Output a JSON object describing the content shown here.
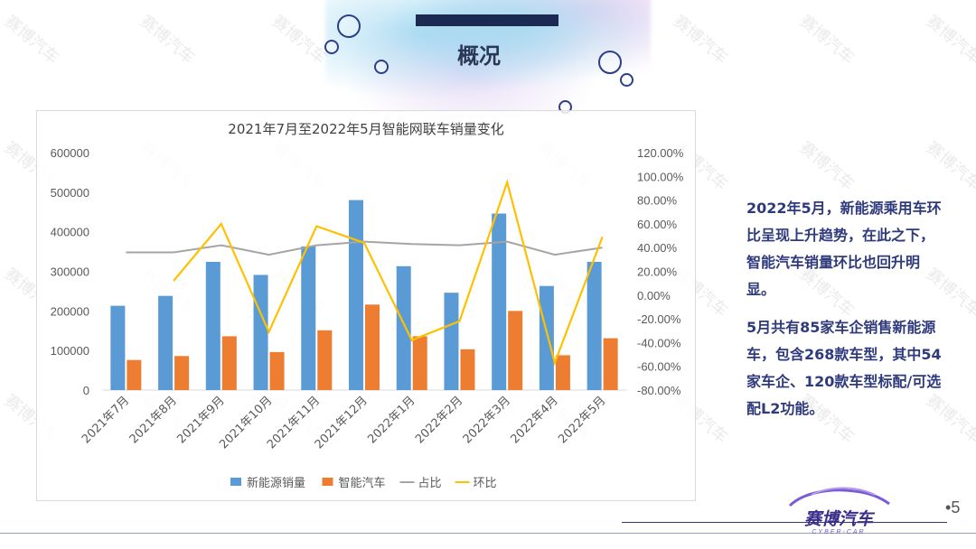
{
  "slide": {
    "title": "概况",
    "page_number": "5",
    "watermark_text": "赛博汽车"
  },
  "logo": {
    "name": "赛博汽车",
    "subtitle": "CYBER-CAR"
  },
  "side_text": [
    "2022年5月，新能源乘用车环比呈现上升趋势，在此之下，智能汽车销量环比也回升明显。",
    "5月共有85家车企销售新能源车，包含268款车型，其中54家车企、120款车型标配/可选配L2功能。"
  ],
  "colors": {
    "nev_bar": "#5b9bd5",
    "smart_bar": "#ed7d31",
    "share_line": "#a5a5a5",
    "mom_line": "#ffc000",
    "title_bar": "#1b2a52",
    "side_text": "#2e3a7c"
  },
  "chart_data": {
    "type": "bar",
    "title": "2021年7月至2022年5月智能网联车销量变化",
    "categories": [
      "2021年7月",
      "2021年8月",
      "2021年9月",
      "2021年10月",
      "2021年11月",
      "2021年12月",
      "2022年1月",
      "2022年2月",
      "2022年3月",
      "2022年4月",
      "2022年5月"
    ],
    "series": [
      {
        "name": "新能源销量",
        "type": "bar",
        "axis": "left",
        "values": [
          213000,
          238000,
          324000,
          291000,
          363000,
          480000,
          313000,
          246000,
          446000,
          263000,
          324000
        ]
      },
      {
        "name": "智能汽车",
        "type": "bar",
        "axis": "left",
        "values": [
          76000,
          86000,
          136000,
          96000,
          151000,
          216000,
          136000,
          103000,
          200000,
          88000,
          131000
        ]
      },
      {
        "name": "占比",
        "type": "line",
        "axis": "right",
        "values": [
          36,
          36,
          42,
          34,
          42,
          45,
          43,
          42,
          45,
          34,
          40
        ]
      },
      {
        "name": "环比",
        "type": "line",
        "axis": "right",
        "values": [
          null,
          12,
          60,
          -31,
          58,
          44,
          -38,
          -22,
          95,
          -57,
          49
        ]
      }
    ],
    "y_left": {
      "min": 0,
      "max": 600000,
      "ticks": [
        "0",
        "100000",
        "200000",
        "300000",
        "400000",
        "500000",
        "600000"
      ]
    },
    "y_right": {
      "min": -80,
      "max": 120,
      "ticks": [
        "-80.00%",
        "-60.00%",
        "-40.00%",
        "-20.00%",
        "0.00%",
        "20.00%",
        "40.00%",
        "60.00%",
        "80.00%",
        "100.00%",
        "120.00%"
      ]
    },
    "legend_position": "bottom",
    "grid": false
  }
}
